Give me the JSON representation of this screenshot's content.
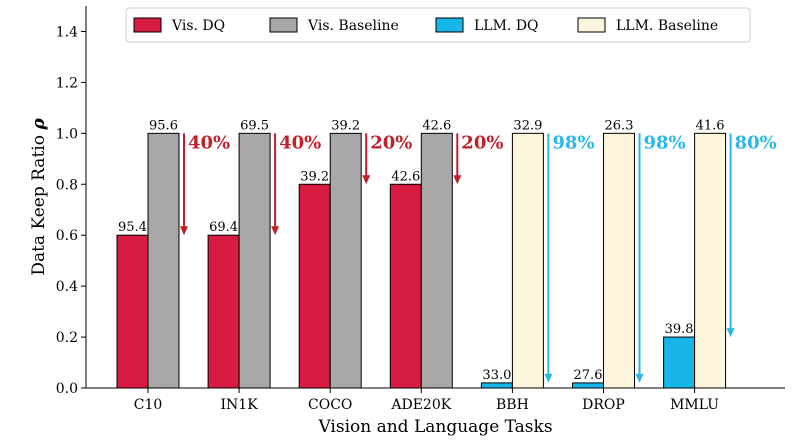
{
  "chart_data": {
    "type": "bar",
    "categories": [
      "C10",
      "IN1K",
      "COCO",
      "ADE20K",
      "BBH",
      "DROP",
      "MMLU"
    ],
    "xlabel": "Vision and Language Tasks",
    "ylabel": "Data Keep Ratio ρ",
    "ylim": [
      0,
      1.5
    ],
    "yticks": [
      "0.0",
      "0.2",
      "0.4",
      "0.6",
      "0.8",
      "1.0",
      "1.2",
      "1.4"
    ],
    "grid": false,
    "legend_position": "top",
    "series": [
      {
        "name": "Vis. DQ",
        "color": "#d81b40",
        "values": [
          0.6,
          0.6,
          0.8,
          0.8,
          null,
          null,
          null
        ],
        "labels": [
          "95.4",
          "69.4",
          "39.2",
          "42.6",
          "",
          "",
          ""
        ]
      },
      {
        "name": "Vis. Baseline",
        "color": "#a8a8a8",
        "values": [
          1.0,
          1.0,
          1.0,
          1.0,
          null,
          null,
          null
        ],
        "labels": [
          "95.6",
          "69.5",
          "39.2",
          "42.6",
          "",
          "",
          ""
        ]
      },
      {
        "name": "LLM. DQ",
        "color": "#17b6ea",
        "values": [
          null,
          null,
          null,
          null,
          0.02,
          0.02,
          0.2
        ],
        "labels": [
          "",
          "",
          "",
          "",
          "33.0",
          "27.6",
          "39.8"
        ]
      },
      {
        "name": "LLM. Baseline",
        "color": "#fdf5dc",
        "values": [
          null,
          null,
          null,
          null,
          1.0,
          1.0,
          1.0
        ],
        "labels": [
          "",
          "",
          "",
          "",
          "32.9",
          "26.3",
          "41.6"
        ]
      }
    ],
    "reductions": [
      {
        "label": "40%",
        "from": 1.0,
        "to": 0.6,
        "color": "#c0202a"
      },
      {
        "label": "40%",
        "from": 1.0,
        "to": 0.6,
        "color": "#c0202a"
      },
      {
        "label": "20%",
        "from": 1.0,
        "to": 0.8,
        "color": "#c0202a"
      },
      {
        "label": "20%",
        "from": 1.0,
        "to": 0.8,
        "color": "#c0202a"
      },
      {
        "label": "98%",
        "from": 1.0,
        "to": 0.02,
        "color": "#2bb8e8"
      },
      {
        "label": "98%",
        "from": 1.0,
        "to": 0.02,
        "color": "#2bb8e8"
      },
      {
        "label": "80%",
        "from": 1.0,
        "to": 0.2,
        "color": "#2bb8e8"
      }
    ]
  }
}
